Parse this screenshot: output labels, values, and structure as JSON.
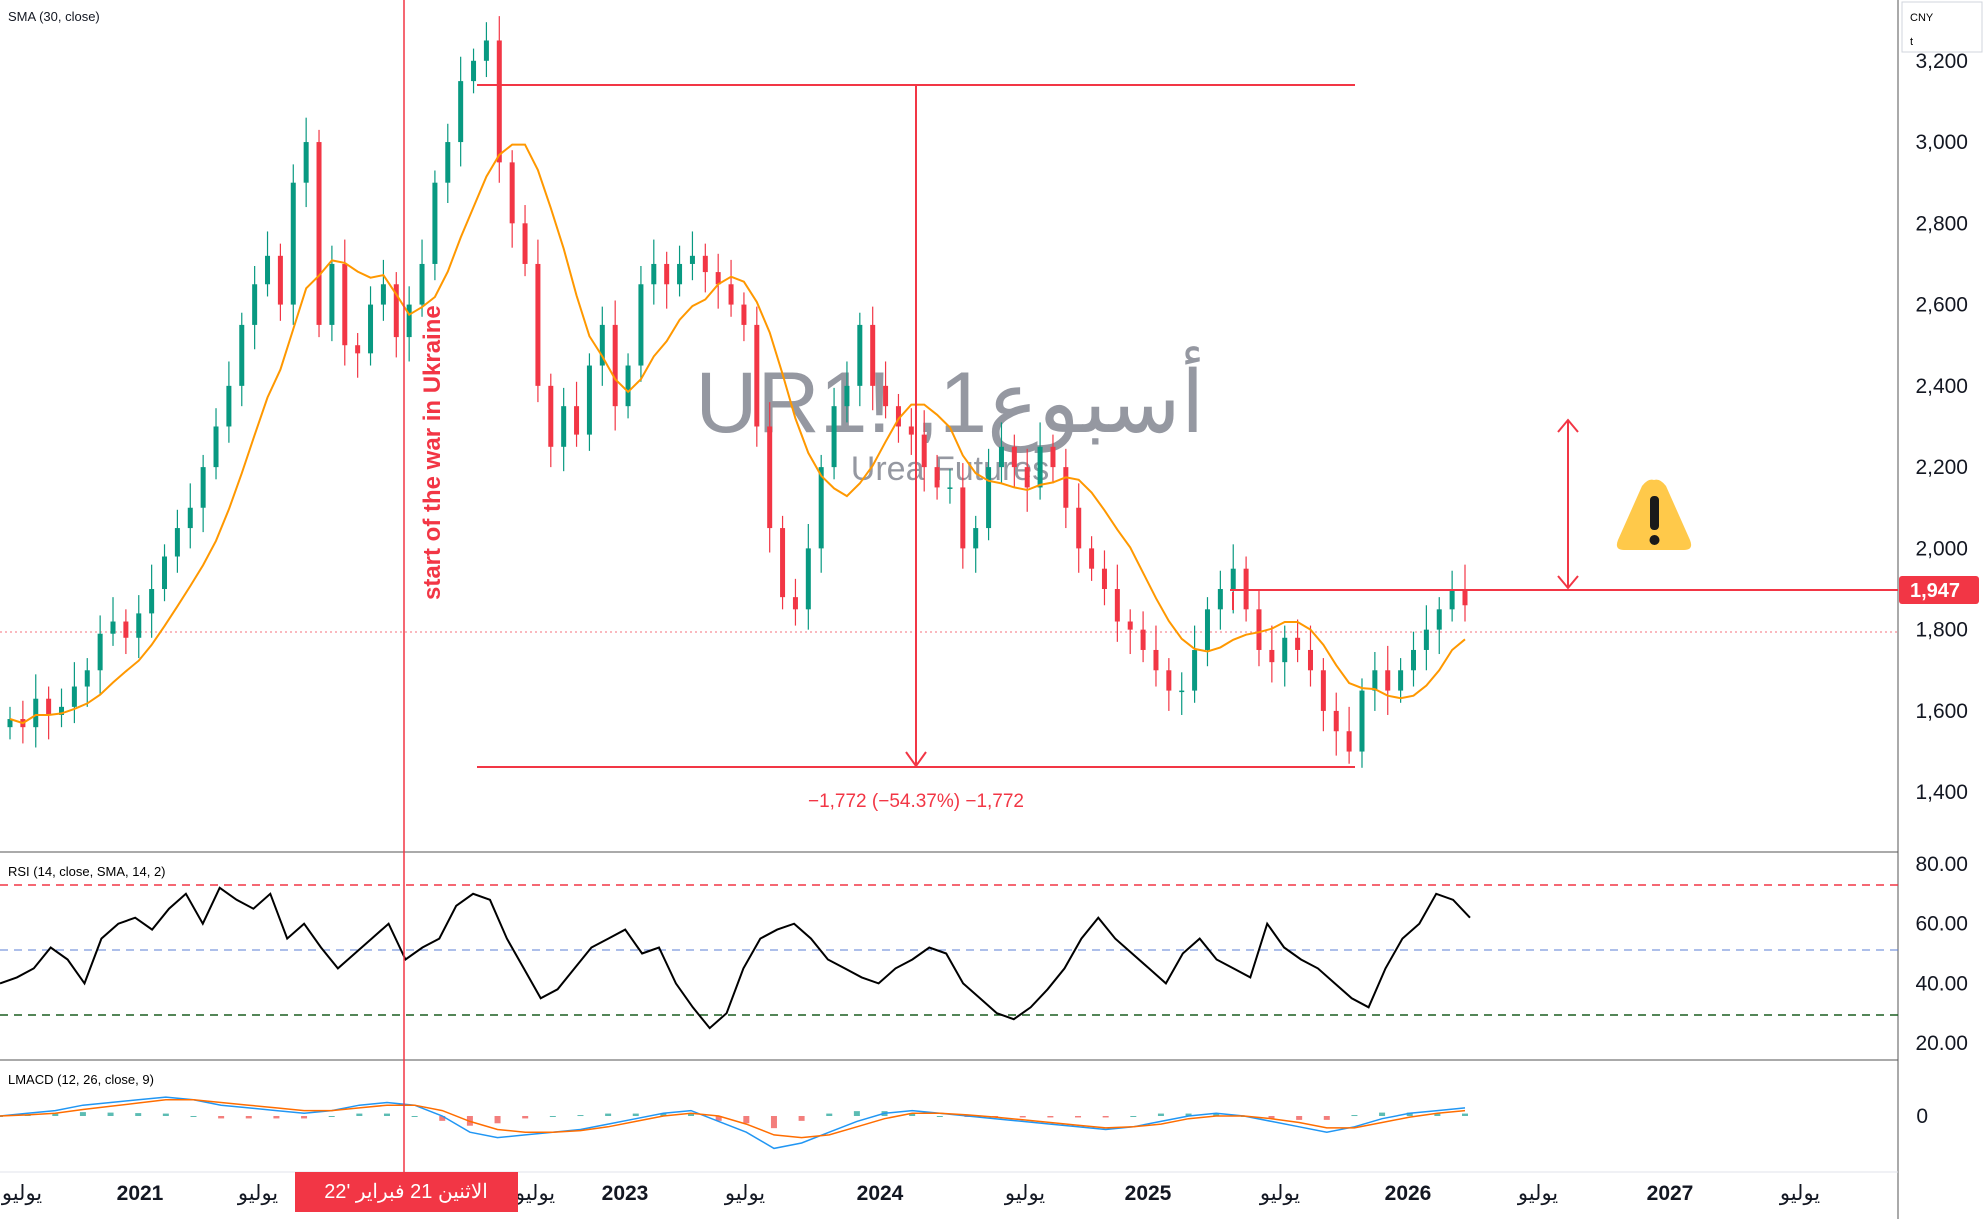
{
  "header": {
    "indicator_main": "SMA (30, close)",
    "currency": "CNY",
    "unit": "t"
  },
  "watermark": {
    "symbol": "UR1! ,1أسبوع",
    "name": "Urea Futures"
  },
  "annotations": {
    "war_label": "start of the war in Ukraine",
    "measure_label": "−1,772 (−54.37%) −1,772",
    "warning_icon": "warning-sign-icon"
  },
  "price_tag": {
    "value": "1,947",
    "color": "#f23645"
  },
  "panes": {
    "rsi_label": "RSI (14, close, SMA, 14, 2)",
    "macd_label": "LMACD (12, 26, close, 9)"
  },
  "time_axis": {
    "labels": [
      "يوليو",
      "2021",
      "يوليو",
      "يوليو",
      "2023",
      "يوليو",
      "2024",
      "يوليو",
      "2025",
      "يوليو",
      "2026",
      "يوليو",
      "2027",
      "يوليو"
    ],
    "cursor_label": "الاثنين 21 فبراير '22"
  },
  "colors": {
    "up": "#089981",
    "down": "#f23645",
    "sma": "#ff9800",
    "rsi_line": "#000000",
    "accent_red": "#f23645",
    "macd_line": "#2196f3",
    "signal_line": "#ff6d00"
  },
  "chart_data": [
    {
      "type": "candlestick",
      "title": "",
      "y_ticks": [
        "1,400",
        "1,600",
        "1,800",
        "2,000",
        "2,200",
        "2,400",
        "2,600",
        "2,800",
        "3,000",
        "3,200"
      ],
      "ylim": [
        1270,
        3325
      ],
      "close": [
        1580,
        1560,
        1630,
        1590,
        1610,
        1660,
        1700,
        1790,
        1820,
        1780,
        1840,
        1900,
        1980,
        2050,
        2100,
        2200,
        2300,
        2400,
        2550,
        2650,
        2720,
        2600,
        2900,
        3000,
        2550,
        2700,
        2500,
        2480,
        2600,
        2650,
        2520,
        2600,
        2700,
        2900,
        3000,
        3150,
        3200,
        3250,
        2950,
        2800,
        2700,
        2400,
        2250,
        2350,
        2280,
        2450,
        2550,
        2350,
        2450,
        2650,
        2700,
        2650,
        2700,
        2720,
        2680,
        2650,
        2600,
        2550,
        2300,
        2050,
        1880,
        1850,
        2000,
        2200,
        2350,
        2400,
        2550,
        2400,
        2350,
        2300,
        2280,
        2200,
        2150,
        2150,
        2000,
        2050,
        2200,
        2250,
        2200,
        2150,
        2250,
        2200,
        2100,
        2000,
        1950,
        1900,
        1820,
        1800,
        1750,
        1700,
        1650,
        1650,
        1750,
        1850,
        1900,
        1950,
        1850,
        1750,
        1720,
        1780,
        1750,
        1700,
        1600,
        1550,
        1500,
        1650,
        1700,
        1650,
        1700,
        1750,
        1800,
        1850,
        1900,
        1860
      ],
      "x_start_label": "يوليو 2020",
      "interval": "1 week (approx. every 2 weeks sampled)",
      "sma_period": 30,
      "high_marker": 3250,
      "low_marker": 1478,
      "last_price": 1947,
      "horizontal_line": 1947
    },
    {
      "type": "line",
      "title": "RSI (14, close, SMA, 14, 2)",
      "y_ticks": [
        "20.00",
        "40.00",
        "60.00",
        "80.00"
      ],
      "ylim": [
        15,
        83
      ],
      "levels": [
        70,
        50,
        30
      ],
      "values": [
        40,
        42,
        45,
        52,
        48,
        40,
        55,
        60,
        62,
        58,
        65,
        70,
        60,
        72,
        68,
        65,
        70,
        55,
        60,
        52,
        45,
        50,
        55,
        60,
        48,
        52,
        55,
        66,
        70,
        68,
        55,
        45,
        35,
        38,
        45,
        52,
        55,
        58,
        50,
        52,
        40,
        32,
        25,
        30,
        45,
        55,
        58,
        60,
        55,
        48,
        45,
        42,
        40,
        45,
        48,
        52,
        50,
        40,
        35,
        30,
        28,
        32,
        38,
        45,
        55,
        62,
        55,
        50,
        45,
        40,
        50,
        55,
        48,
        45,
        42,
        60,
        52,
        48,
        45,
        40,
        35,
        32,
        45,
        55,
        60,
        70,
        68,
        62
      ]
    },
    {
      "type": "line",
      "title": "LMACD (12, 26, close, 9)",
      "y_ticks": [
        "0"
      ],
      "ylim": [
        -1,
        1
      ],
      "macd": [
        0,
        0.05,
        0.1,
        0.2,
        0.25,
        0.3,
        0.35,
        0.3,
        0.2,
        0.15,
        0.1,
        0.05,
        0.1,
        0.2,
        0.25,
        0.2,
        0.0,
        -0.3,
        -0.4,
        -0.35,
        -0.3,
        -0.25,
        -0.15,
        -0.05,
        0.05,
        0.1,
        -0.1,
        -0.3,
        -0.6,
        -0.5,
        -0.3,
        -0.1,
        0.05,
        0.1,
        0.05,
        0.0,
        -0.05,
        -0.1,
        -0.15,
        -0.2,
        -0.25,
        -0.2,
        -0.1,
        0.0,
        0.05,
        0.0,
        -0.1,
        -0.2,
        -0.3,
        -0.2,
        -0.05,
        0.05,
        0.1,
        0.15
      ],
      "signal": [
        0,
        0.02,
        0.05,
        0.12,
        0.18,
        0.24,
        0.3,
        0.3,
        0.25,
        0.2,
        0.15,
        0.1,
        0.1,
        0.15,
        0.2,
        0.2,
        0.1,
        -0.1,
        -0.25,
        -0.3,
        -0.3,
        -0.27,
        -0.2,
        -0.1,
        0.0,
        0.05,
        0.0,
        -0.15,
        -0.35,
        -0.4,
        -0.35,
        -0.2,
        -0.05,
        0.05,
        0.05,
        0.02,
        -0.02,
        -0.07,
        -0.12,
        -0.17,
        -0.22,
        -0.2,
        -0.15,
        -0.05,
        0.0,
        0.0,
        -0.05,
        -0.12,
        -0.22,
        -0.22,
        -0.12,
        -0.02,
        0.05,
        0.1
      ]
    }
  ]
}
